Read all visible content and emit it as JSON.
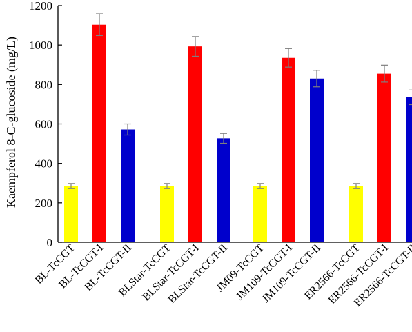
{
  "chart_data": {
    "type": "bar",
    "title": "",
    "xlabel": "",
    "ylabel": "Kaempferol 8-C-glucoside (mg/L)",
    "ylim": [
      0,
      1200
    ],
    "yticks": [
      0,
      200,
      400,
      600,
      800,
      1000,
      1200
    ],
    "grid": false,
    "legend": "none",
    "bars": [
      {
        "label": "BL-TcCGT",
        "value": 285,
        "error": 13,
        "color": "#ffff00",
        "group": 0
      },
      {
        "label": "BL-TcCGT-I",
        "value": 1103,
        "error": 55,
        "color": "#ff0000",
        "group": 0
      },
      {
        "label": "BL-TcCGT-II",
        "value": 572,
        "error": 28,
        "color": "#0000cc",
        "group": 0
      },
      {
        "label": "BLStar-TcCGT",
        "value": 285,
        "error": 13,
        "color": "#ffff00",
        "group": 1
      },
      {
        "label": "BLStar-TcCGT-I",
        "value": 993,
        "error": 50,
        "color": "#ff0000",
        "group": 1
      },
      {
        "label": "BLStar-TcCGT-II",
        "value": 527,
        "error": 25,
        "color": "#0000cc",
        "group": 1
      },
      {
        "label": "JM09-TcCGT",
        "value": 285,
        "error": 13,
        "color": "#ffff00",
        "group": 2
      },
      {
        "label": "JM109-TcCGT-I",
        "value": 935,
        "error": 47,
        "color": "#ff0000",
        "group": 2
      },
      {
        "label": "JM109-TcCGT-II",
        "value": 830,
        "error": 42,
        "color": "#0000cc",
        "group": 2
      },
      {
        "label": "ER2566-TcCGT",
        "value": 285,
        "error": 13,
        "color": "#ffff00",
        "group": 3
      },
      {
        "label": "ER2566-TcCGT-I",
        "value": 855,
        "error": 43,
        "color": "#ff0000",
        "group": 3
      },
      {
        "label": "ER2566-TcCGT-II",
        "value": 735,
        "error": 37,
        "color": "#0000cc",
        "group": 3
      }
    ],
    "colors": {
      "axis": "#000000",
      "errorbar": "#7f7f7f"
    }
  }
}
